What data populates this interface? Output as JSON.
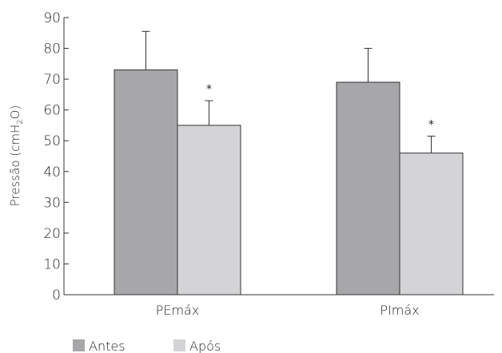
{
  "chart_data": {
    "type": "bar",
    "categories": [
      "PEmáx",
      "PImáx"
    ],
    "series": [
      {
        "name": "Antes",
        "values": [
          73,
          69
        ],
        "errors": [
          12.5,
          11
        ],
        "significance": [
          "",
          ""
        ],
        "color": "#a7a7a9"
      },
      {
        "name": "Após",
        "values": [
          55,
          46
        ],
        "errors": [
          8,
          5.5
        ],
        "significance": [
          "*",
          "*"
        ],
        "color": "#d4d4d6"
      }
    ],
    "ylabel_main": "Pressão (cmH",
    "ylabel_sub": "2",
    "ylabel_end": "O)",
    "ylim": [
      0,
      90
    ],
    "yticks": [
      "0",
      "10",
      "20",
      "30",
      "40",
      "50",
      "60",
      "70",
      "80",
      "90"
    ],
    "grid": false,
    "legend_position": "bottom-left"
  }
}
